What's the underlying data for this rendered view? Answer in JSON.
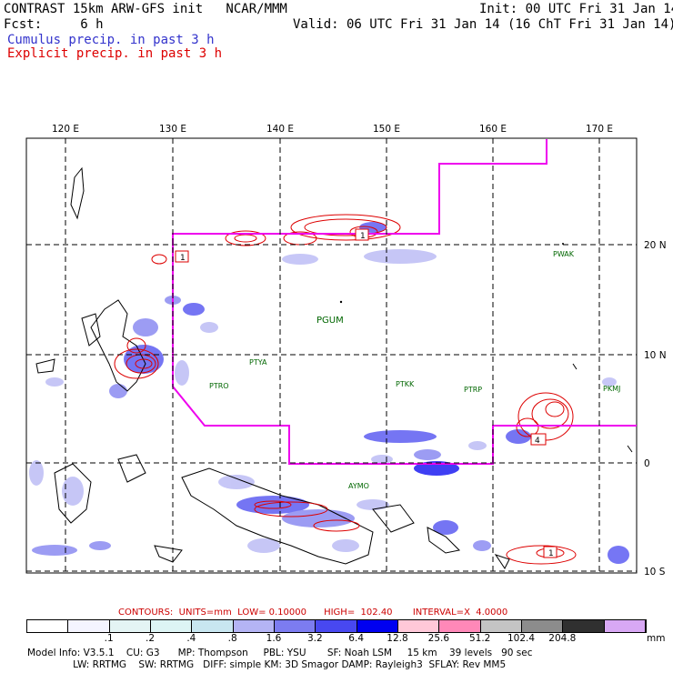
{
  "header": {
    "title": "CONTRAST 15km ARW-GFS init   NCAR/MMM",
    "init": "Init: 00 UTC Fri 31 Jan 14",
    "fcst": "Fcst:     6 h",
    "valid": "Valid: 06 UTC Fri 31 Jan 14 (16 ChT Fri 31 Jan 14)",
    "cumulus_label": "Cumulus precip. in past 3 h",
    "explicit_label": "Explicit precip. in past 3 h",
    "cumulus_color": "#3333cc",
    "explicit_color": "#dd0000"
  },
  "map": {
    "lon_labels": [
      "120 E",
      "130 E",
      "140 E",
      "150 E",
      "160 E",
      "170 E"
    ],
    "lat_labels": [
      "20 N",
      "10 N",
      "0",
      "10 S"
    ],
    "stations": [
      "PWAK",
      "PGUM",
      "PTYA",
      "PTRO",
      "PTKK",
      "PTRP",
      "PKMJ",
      "AYMO"
    ],
    "contour_labels": [
      "1",
      "1",
      "4",
      "1"
    ],
    "boundary_color": "#ee00ee",
    "grid_style": "dashed"
  },
  "contours_line": {
    "contours": "CONTOURS:",
    "units": "UNITS=mm",
    "low": "LOW= 0.10000",
    "high": "HIGH=  102.40",
    "interval": "INTERVAL=X  4.0000"
  },
  "colorbar": {
    "labels": [
      ".1",
      ".2",
      ".4",
      ".8",
      "1.6",
      "3.2",
      "6.4",
      "12.8",
      "25.6",
      "51.2",
      "102.4",
      "204.8"
    ],
    "unit": "mm",
    "colors": [
      "#ffffff",
      "#f4f4ff",
      "#e4f4f4",
      "#ddf4f4",
      "#c8e6f0",
      "#b4b4f4",
      "#7c7cf0",
      "#4848f0",
      "#0000f0",
      "#ffc8d8",
      "#ff88b8",
      "#c4c4c4",
      "#8c8c8c",
      "#303030",
      "#d8a8f4"
    ]
  },
  "footer": {
    "line1": "Model Info: V3.5.1    CU: G3      MP: Thompson     PBL: YSU       SF: Noah LSM     15 km    39 levels   90 sec",
    "line2": "               LW: RRTMG    SW: RRTMG   DIFF: simple KM: 3D Smagor DAMP: Rayleigh3  SFLAY: Rev MM5"
  }
}
